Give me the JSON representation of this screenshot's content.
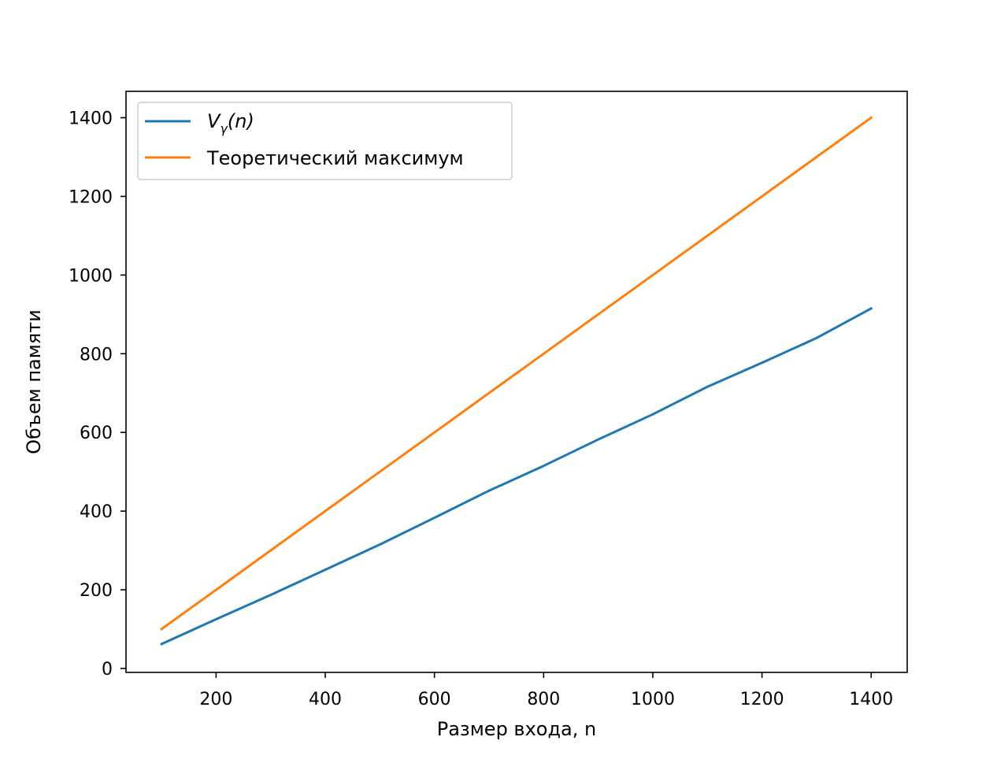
{
  "chart_data": {
    "type": "line",
    "title": "",
    "xlabel": "Размер входа, n",
    "ylabel": "Объем памяти",
    "xlim": [
      35,
      1466
    ],
    "ylim": [
      -10,
      1467
    ],
    "xticks": [
      200,
      400,
      600,
      800,
      1000,
      1200,
      1400
    ],
    "yticks": [
      0,
      200,
      400,
      600,
      800,
      1000,
      1200,
      1400
    ],
    "x": [
      100,
      200,
      300,
      400,
      500,
      600,
      700,
      800,
      900,
      1000,
      1100,
      1200,
      1300,
      1400
    ],
    "series": [
      {
        "name": "V_γ(n)",
        "name_display": {
          "base": "V",
          "sub": "γ",
          "arg": "(n)"
        },
        "color": "#1f77b4",
        "values": [
          62,
          125,
          187,
          251,
          315,
          383,
          452,
          515,
          582,
          646,
          716,
          777,
          840,
          915
        ]
      },
      {
        "name": "Теоретический максимум",
        "color": "#ff7f0e",
        "values": [
          100,
          200,
          300,
          400,
          500,
          600,
          700,
          800,
          900,
          1000,
          1100,
          1200,
          1300,
          1400
        ]
      }
    ],
    "grid": false,
    "legend": "top-left"
  }
}
